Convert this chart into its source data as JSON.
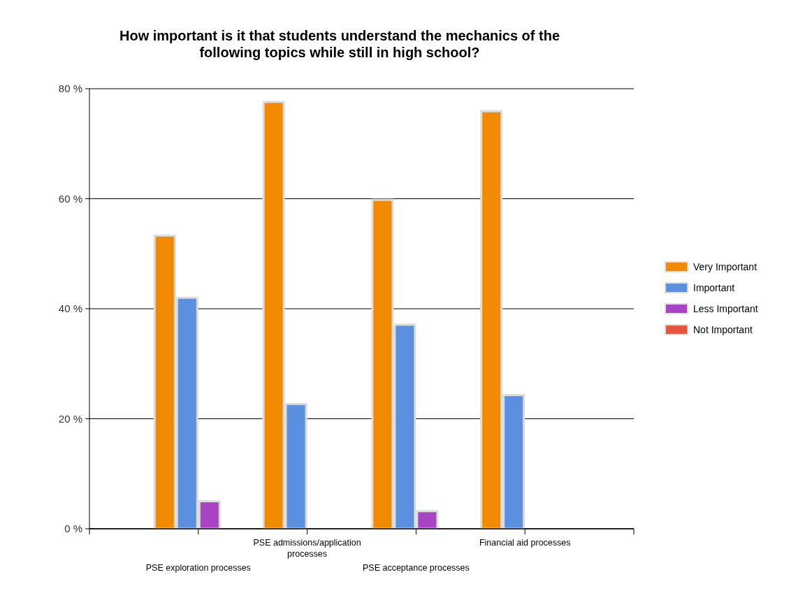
{
  "chart_data": {
    "type": "bar",
    "title": "How important is it that students understand the mechanics of the following topics while still in high school?",
    "categories": [
      "PSE exploration processes",
      "PSE admissions/application processes",
      "PSE acceptance processes",
      "Financial aid processes"
    ],
    "series": [
      {
        "name": "Very Important",
        "color": "#f28a00",
        "values": [
          53.3,
          77.6,
          59.8,
          75.9
        ]
      },
      {
        "name": "Important",
        "color": "#5b8fe0",
        "values": [
          42.0,
          22.7,
          37.1,
          24.3
        ]
      },
      {
        "name": "Less Important",
        "color": "#a844c4",
        "values": [
          5.0,
          0,
          3.2,
          0
        ]
      },
      {
        "name": "Not Important",
        "color": "#e8553a",
        "values": [
          0,
          0,
          0,
          0
        ]
      }
    ],
    "ylim": [
      0,
      80
    ],
    "yticks": [
      {
        "value": 0,
        "label": "0 %"
      },
      {
        "value": 20,
        "label": "20 %"
      },
      {
        "value": 40,
        "label": "40 %"
      },
      {
        "value": 60,
        "label": "60 %"
      },
      {
        "value": 80,
        "label": "80 %"
      }
    ],
    "grid": "y",
    "legend": "right"
  }
}
